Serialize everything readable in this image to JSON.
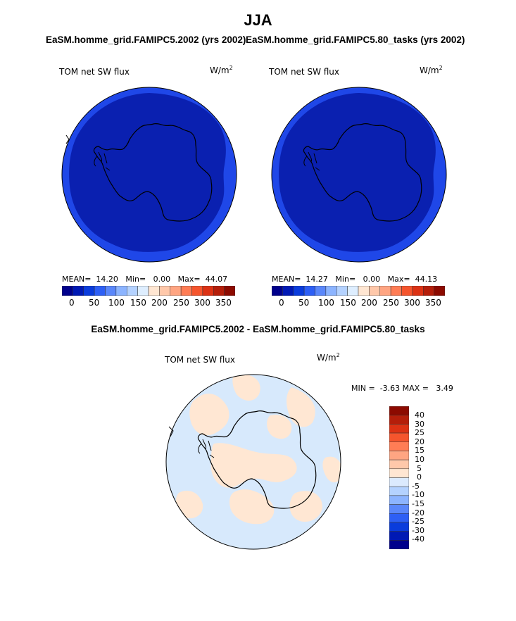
{
  "page": {
    "title": "JJA",
    "left_subtitle": "EaSM.homme_grid.FAMIPC5.2002 (yrs 2002)",
    "right_subtitle": "EaSM.homme_grid.FAMIPC5.80_tasks (yrs 2002)",
    "diff_subtitle": "EaSM.homme_grid.FAMIPC5.2002 - EaSM.homme_grid.FAMIPC5.80_tasks"
  },
  "panels": [
    {
      "variable_label": "TOM net SW flux",
      "units": "W/m",
      "units_exp": "2",
      "mean_label": "MEAN=",
      "mean": "14.20",
      "min_label": "Min=",
      "min": "0.00",
      "max_label": "Max=",
      "max": "44.07",
      "colorbar_ticks": [
        "0",
        "50",
        "100",
        "150",
        "200",
        "250",
        "300",
        "350"
      ]
    },
    {
      "variable_label": "TOM net SW flux",
      "units": "W/m",
      "units_exp": "2",
      "mean_label": "MEAN=",
      "mean": "14.27",
      "min_label": "Min=",
      "min": "0.00",
      "max_label": "Max=",
      "max": "44.13",
      "colorbar_ticks": [
        "0",
        "50",
        "100",
        "150",
        "200",
        "250",
        "300",
        "350"
      ]
    }
  ],
  "diff_panel": {
    "variable_label": "TOM net SW flux",
    "units": "W/m",
    "units_exp": "2",
    "min_label": "MIN =",
    "min": "-3.63",
    "max_label": "MAX =",
    "max": "3.49",
    "colorbar_ticks": [
      "40",
      "30",
      "25",
      "20",
      "15",
      "10",
      "5",
      "0",
      "-5",
      "-10",
      "-15",
      "-20",
      "-25",
      "-30",
      "-40"
    ]
  },
  "colors": {
    "abs_scale": [
      "#00008c",
      "#0019b4",
      "#0a3cdc",
      "#2d5ff5",
      "#5a87fa",
      "#8cb4ff",
      "#b4d2ff",
      "#deeeff",
      "#ffe6d2",
      "#ffc8aa",
      "#ffa582",
      "#ff7d55",
      "#f5552d",
      "#dc3214",
      "#b41e0a",
      "#8c0a00"
    ],
    "diff_scale": [
      "#8c0a00",
      "#b41e0a",
      "#dc3214",
      "#f5552d",
      "#ff7d55",
      "#ffa582",
      "#ffc8aa",
      "#ffe6d2",
      "#dbeafe",
      "#b4d2ff",
      "#8cb4ff",
      "#5a87fa",
      "#2d5ff5",
      "#0a3cdc",
      "#0019b4",
      "#00008c"
    ],
    "outer_ring": "#1f47e8",
    "inner_field": "#0a20b0",
    "diff_pos": "#ffe7d3",
    "diff_neg": "#d7e9fc"
  }
}
